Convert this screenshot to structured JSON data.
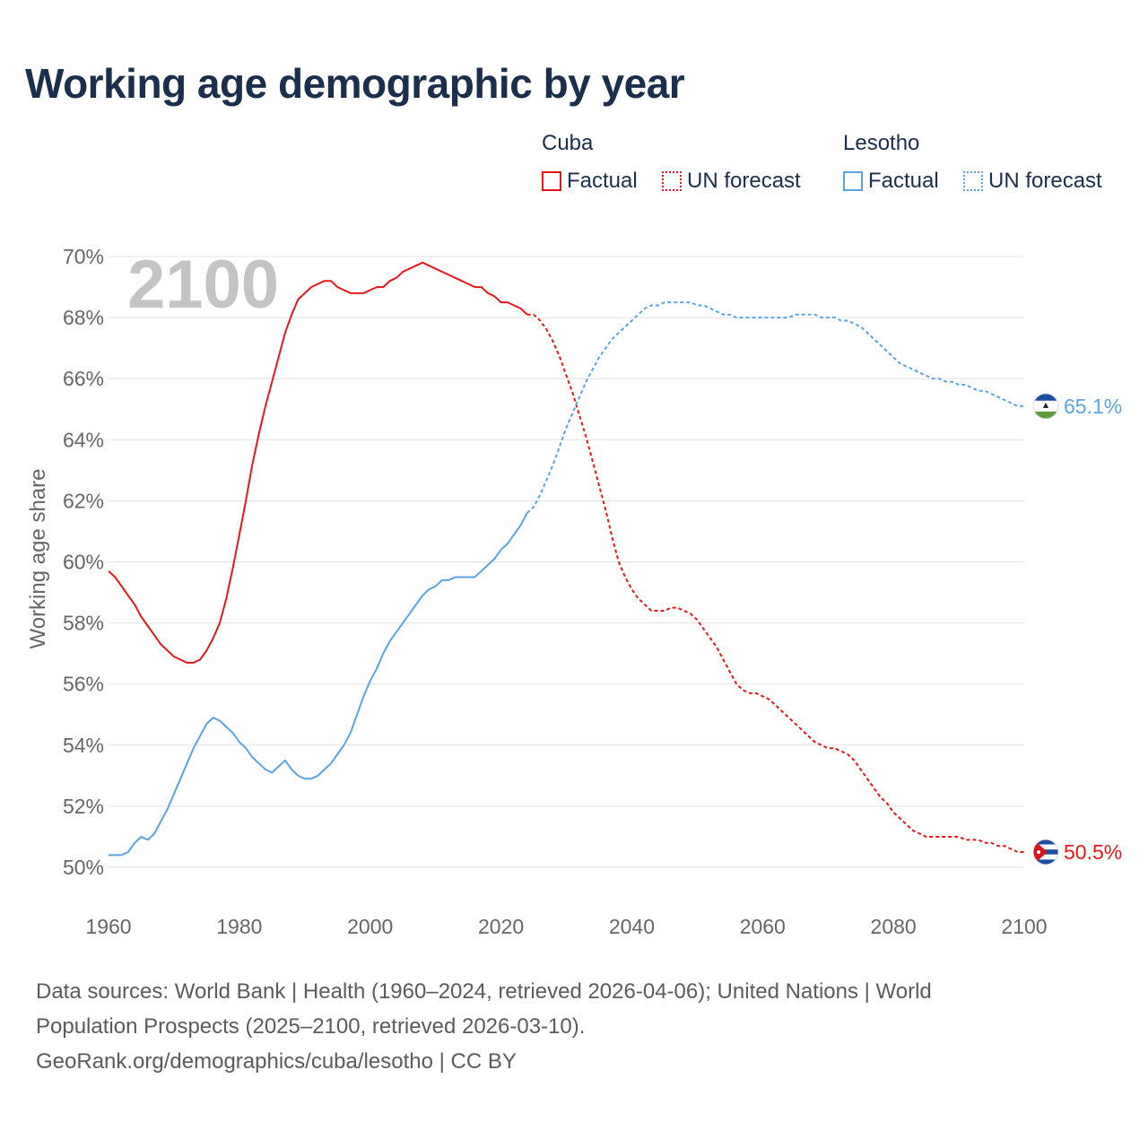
{
  "title": "Working age demographic by year",
  "legend": {
    "groups": [
      {
        "name": "Cuba",
        "factual_label": "Factual",
        "forecast_label": "UN forecast",
        "color": "#e8161b"
      },
      {
        "name": "Lesotho",
        "factual_label": "Factual",
        "forecast_label": "UN forecast",
        "color": "#5aa4e2"
      }
    ]
  },
  "year_label": "2100",
  "footer": {
    "line1": "Data sources: World Bank | Health (1960–2024, retrieved 2026-04-06); United Nations | World",
    "line2": "Population Prospects (2025–2100, retrieved 2026-03-10).",
    "line3": "GeoRank.org/demographics/cuba/lesotho | CC BY"
  },
  "chart_data": {
    "type": "line",
    "title": "Working age demographic by year",
    "xlabel": "",
    "ylabel": "Working age share",
    "xlim": [
      1960,
      2100
    ],
    "ylim": [
      50,
      70
    ],
    "x_ticks": [
      "1960",
      "1980",
      "2000",
      "2020",
      "2040",
      "2060",
      "2080",
      "2100"
    ],
    "y_ticks": [
      "50%",
      "52%",
      "54%",
      "56%",
      "58%",
      "60%",
      "62%",
      "64%",
      "66%",
      "68%",
      "70%"
    ],
    "grid": true,
    "factual_end_year": 2024,
    "series": [
      {
        "name": "Cuba",
        "color": "#e8161b",
        "end_label": "50.5%",
        "end_flag": "cuba-flag",
        "points": [
          [
            1960,
            59.7
          ],
          [
            1961,
            59.5
          ],
          [
            1962,
            59.2
          ],
          [
            1963,
            58.9
          ],
          [
            1964,
            58.6
          ],
          [
            1965,
            58.2
          ],
          [
            1966,
            57.9
          ],
          [
            1967,
            57.6
          ],
          [
            1968,
            57.3
          ],
          [
            1969,
            57.1
          ],
          [
            1970,
            56.9
          ],
          [
            1971,
            56.8
          ],
          [
            1972,
            56.7
          ],
          [
            1973,
            56.7
          ],
          [
            1974,
            56.8
          ],
          [
            1975,
            57.1
          ],
          [
            1976,
            57.5
          ],
          [
            1977,
            58.0
          ],
          [
            1978,
            58.8
          ],
          [
            1979,
            59.8
          ],
          [
            1980,
            60.9
          ],
          [
            1981,
            62.0
          ],
          [
            1982,
            63.2
          ],
          [
            1983,
            64.2
          ],
          [
            1984,
            65.1
          ],
          [
            1985,
            65.9
          ],
          [
            1986,
            66.7
          ],
          [
            1987,
            67.5
          ],
          [
            1988,
            68.1
          ],
          [
            1989,
            68.6
          ],
          [
            1990,
            68.8
          ],
          [
            1991,
            69.0
          ],
          [
            1992,
            69.1
          ],
          [
            1993,
            69.2
          ],
          [
            1994,
            69.2
          ],
          [
            1995,
            69.0
          ],
          [
            1996,
            68.9
          ],
          [
            1997,
            68.8
          ],
          [
            1998,
            68.8
          ],
          [
            1999,
            68.8
          ],
          [
            2000,
            68.9
          ],
          [
            2001,
            69.0
          ],
          [
            2002,
            69.0
          ],
          [
            2003,
            69.2
          ],
          [
            2004,
            69.3
          ],
          [
            2005,
            69.5
          ],
          [
            2006,
            69.6
          ],
          [
            2007,
            69.7
          ],
          [
            2008,
            69.8
          ],
          [
            2009,
            69.7
          ],
          [
            2010,
            69.6
          ],
          [
            2011,
            69.5
          ],
          [
            2012,
            69.4
          ],
          [
            2013,
            69.3
          ],
          [
            2014,
            69.2
          ],
          [
            2015,
            69.1
          ],
          [
            2016,
            69.0
          ],
          [
            2017,
            69.0
          ],
          [
            2018,
            68.8
          ],
          [
            2019,
            68.7
          ],
          [
            2020,
            68.5
          ],
          [
            2021,
            68.5
          ],
          [
            2022,
            68.4
          ],
          [
            2023,
            68.3
          ],
          [
            2024,
            68.1
          ],
          [
            2025,
            68.1
          ],
          [
            2026,
            67.9
          ],
          [
            2027,
            67.6
          ],
          [
            2028,
            67.2
          ],
          [
            2029,
            66.7
          ],
          [
            2030,
            66.1
          ],
          [
            2031,
            65.5
          ],
          [
            2032,
            64.8
          ],
          [
            2033,
            64.1
          ],
          [
            2034,
            63.3
          ],
          [
            2035,
            62.5
          ],
          [
            2036,
            61.7
          ],
          [
            2037,
            60.8
          ],
          [
            2038,
            60.0
          ],
          [
            2039,
            59.5
          ],
          [
            2040,
            59.1
          ],
          [
            2041,
            58.8
          ],
          [
            2042,
            58.6
          ],
          [
            2043,
            58.4
          ],
          [
            2044,
            58.4
          ],
          [
            2045,
            58.4
          ],
          [
            2046,
            58.5
          ],
          [
            2047,
            58.5
          ],
          [
            2048,
            58.4
          ],
          [
            2049,
            58.3
          ],
          [
            2050,
            58.1
          ],
          [
            2051,
            57.8
          ],
          [
            2052,
            57.5
          ],
          [
            2053,
            57.2
          ],
          [
            2054,
            56.8
          ],
          [
            2055,
            56.4
          ],
          [
            2056,
            56.0
          ],
          [
            2057,
            55.8
          ],
          [
            2058,
            55.7
          ],
          [
            2059,
            55.7
          ],
          [
            2060,
            55.6
          ],
          [
            2061,
            55.5
          ],
          [
            2062,
            55.3
          ],
          [
            2063,
            55.1
          ],
          [
            2064,
            54.9
          ],
          [
            2065,
            54.7
          ],
          [
            2066,
            54.5
          ],
          [
            2067,
            54.3
          ],
          [
            2068,
            54.1
          ],
          [
            2069,
            54.0
          ],
          [
            2070,
            53.9
          ],
          [
            2071,
            53.9
          ],
          [
            2072,
            53.8
          ],
          [
            2073,
            53.7
          ],
          [
            2074,
            53.5
          ],
          [
            2075,
            53.2
          ],
          [
            2076,
            52.9
          ],
          [
            2077,
            52.6
          ],
          [
            2078,
            52.3
          ],
          [
            2079,
            52.1
          ],
          [
            2080,
            51.8
          ],
          [
            2081,
            51.6
          ],
          [
            2082,
            51.4
          ],
          [
            2083,
            51.2
          ],
          [
            2084,
            51.1
          ],
          [
            2085,
            51.0
          ],
          [
            2086,
            51.0
          ],
          [
            2087,
            51.0
          ],
          [
            2088,
            51.0
          ],
          [
            2089,
            51.0
          ],
          [
            2090,
            51.0
          ],
          [
            2091,
            50.9
          ],
          [
            2092,
            50.9
          ],
          [
            2093,
            50.9
          ],
          [
            2094,
            50.8
          ],
          [
            2095,
            50.8
          ],
          [
            2096,
            50.7
          ],
          [
            2097,
            50.7
          ],
          [
            2098,
            50.6
          ],
          [
            2099,
            50.5
          ],
          [
            2100,
            50.5
          ]
        ]
      },
      {
        "name": "Lesotho",
        "color": "#5aa4e2",
        "end_label": "65.1%",
        "end_flag": "lesotho-flag",
        "points": [
          [
            1960,
            50.4
          ],
          [
            1961,
            50.4
          ],
          [
            1962,
            50.4
          ],
          [
            1963,
            50.5
          ],
          [
            1964,
            50.8
          ],
          [
            1965,
            51.0
          ],
          [
            1966,
            50.9
          ],
          [
            1967,
            51.1
          ],
          [
            1968,
            51.5
          ],
          [
            1969,
            51.9
          ],
          [
            1970,
            52.4
          ],
          [
            1971,
            52.9
          ],
          [
            1972,
            53.4
          ],
          [
            1973,
            53.9
          ],
          [
            1974,
            54.3
          ],
          [
            1975,
            54.7
          ],
          [
            1976,
            54.9
          ],
          [
            1977,
            54.8
          ],
          [
            1978,
            54.6
          ],
          [
            1979,
            54.4
          ],
          [
            1980,
            54.1
          ],
          [
            1981,
            53.9
          ],
          [
            1982,
            53.6
          ],
          [
            1983,
            53.4
          ],
          [
            1984,
            53.2
          ],
          [
            1985,
            53.1
          ],
          [
            1986,
            53.3
          ],
          [
            1987,
            53.5
          ],
          [
            1988,
            53.2
          ],
          [
            1989,
            53.0
          ],
          [
            1990,
            52.9
          ],
          [
            1991,
            52.9
          ],
          [
            1992,
            53.0
          ],
          [
            1993,
            53.2
          ],
          [
            1994,
            53.4
          ],
          [
            1995,
            53.7
          ],
          [
            1996,
            54.0
          ],
          [
            1997,
            54.4
          ],
          [
            1998,
            55.0
          ],
          [
            1999,
            55.6
          ],
          [
            2000,
            56.1
          ],
          [
            2001,
            56.5
          ],
          [
            2002,
            57.0
          ],
          [
            2003,
            57.4
          ],
          [
            2004,
            57.7
          ],
          [
            2005,
            58.0
          ],
          [
            2006,
            58.3
          ],
          [
            2007,
            58.6
          ],
          [
            2008,
            58.9
          ],
          [
            2009,
            59.1
          ],
          [
            2010,
            59.2
          ],
          [
            2011,
            59.4
          ],
          [
            2012,
            59.4
          ],
          [
            2013,
            59.5
          ],
          [
            2014,
            59.5
          ],
          [
            2015,
            59.5
          ],
          [
            2016,
            59.5
          ],
          [
            2017,
            59.7
          ],
          [
            2018,
            59.9
          ],
          [
            2019,
            60.1
          ],
          [
            2020,
            60.4
          ],
          [
            2021,
            60.6
          ],
          [
            2022,
            60.9
          ],
          [
            2023,
            61.2
          ],
          [
            2024,
            61.6
          ],
          [
            2025,
            61.8
          ],
          [
            2026,
            62.2
          ],
          [
            2027,
            62.7
          ],
          [
            2028,
            63.2
          ],
          [
            2029,
            63.8
          ],
          [
            2030,
            64.4
          ],
          [
            2031,
            64.9
          ],
          [
            2032,
            65.4
          ],
          [
            2033,
            65.9
          ],
          [
            2034,
            66.3
          ],
          [
            2035,
            66.7
          ],
          [
            2036,
            67.0
          ],
          [
            2037,
            67.3
          ],
          [
            2038,
            67.5
          ],
          [
            2039,
            67.7
          ],
          [
            2040,
            67.9
          ],
          [
            2041,
            68.1
          ],
          [
            2042,
            68.3
          ],
          [
            2043,
            68.4
          ],
          [
            2044,
            68.4
          ],
          [
            2045,
            68.5
          ],
          [
            2046,
            68.5
          ],
          [
            2047,
            68.5
          ],
          [
            2048,
            68.5
          ],
          [
            2049,
            68.5
          ],
          [
            2050,
            68.4
          ],
          [
            2051,
            68.4
          ],
          [
            2052,
            68.3
          ],
          [
            2053,
            68.2
          ],
          [
            2054,
            68.1
          ],
          [
            2055,
            68.1
          ],
          [
            2056,
            68.0
          ],
          [
            2057,
            68.0
          ],
          [
            2058,
            68.0
          ],
          [
            2059,
            68.0
          ],
          [
            2060,
            68.0
          ],
          [
            2061,
            68.0
          ],
          [
            2062,
            68.0
          ],
          [
            2063,
            68.0
          ],
          [
            2064,
            68.0
          ],
          [
            2065,
            68.1
          ],
          [
            2066,
            68.1
          ],
          [
            2067,
            68.1
          ],
          [
            2068,
            68.1
          ],
          [
            2069,
            68.0
          ],
          [
            2070,
            68.0
          ],
          [
            2071,
            68.0
          ],
          [
            2072,
            67.9
          ],
          [
            2073,
            67.9
          ],
          [
            2074,
            67.8
          ],
          [
            2075,
            67.7
          ],
          [
            2076,
            67.5
          ],
          [
            2077,
            67.3
          ],
          [
            2078,
            67.1
          ],
          [
            2079,
            66.9
          ],
          [
            2080,
            66.7
          ],
          [
            2081,
            66.5
          ],
          [
            2082,
            66.4
          ],
          [
            2083,
            66.3
          ],
          [
            2084,
            66.2
          ],
          [
            2085,
            66.1
          ],
          [
            2086,
            66.0
          ],
          [
            2087,
            66.0
          ],
          [
            2088,
            65.9
          ],
          [
            2089,
            65.9
          ],
          [
            2090,
            65.8
          ],
          [
            2091,
            65.8
          ],
          [
            2092,
            65.7
          ],
          [
            2093,
            65.6
          ],
          [
            2094,
            65.6
          ],
          [
            2095,
            65.5
          ],
          [
            2096,
            65.4
          ],
          [
            2097,
            65.3
          ],
          [
            2098,
            65.2
          ],
          [
            2099,
            65.1
          ],
          [
            2100,
            65.1
          ]
        ]
      }
    ]
  }
}
